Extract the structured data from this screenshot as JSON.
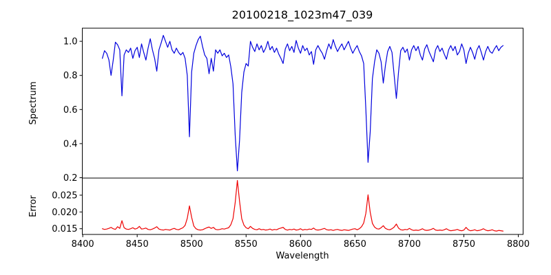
{
  "figure": {
    "background": "#ffffff",
    "kind": "matplotlib-style two-panel spectrum plot"
  },
  "chart_data": {
    "type": "line",
    "title": "20100218_1023m47_039",
    "xlabel": "Wavelength",
    "xlim": [
      8399.6,
      8804.4
    ],
    "x": {
      "start": 8418,
      "step": 2,
      "end": 8786
    },
    "xticks": [
      {
        "value": 8400,
        "label": "8400"
      },
      {
        "value": 8450,
        "label": "8450"
      },
      {
        "value": 8500,
        "label": "8500"
      },
      {
        "value": 8550,
        "label": "8550"
      },
      {
        "value": 8600,
        "label": "8600"
      },
      {
        "value": 8650,
        "label": "8650"
      },
      {
        "value": 8700,
        "label": "8700"
      },
      {
        "value": 8750,
        "label": "8750"
      },
      {
        "value": 8800,
        "label": "8800"
      }
    ],
    "grid": false,
    "legend": "none",
    "subplots": [
      {
        "series": "spectrum",
        "ylabel": "Spectrum",
        "color": "#0000dd",
        "ylim": [
          0.198,
          1.077
        ],
        "yticks": [
          {
            "value": 0.2,
            "label": "0.2"
          },
          {
            "value": 0.4,
            "label": "0.4"
          },
          {
            "value": 0.6,
            "label": "0.6"
          },
          {
            "value": 0.8,
            "label": "0.8"
          },
          {
            "value": 1.0,
            "label": "1.0"
          }
        ],
        "notable_features": "absorption lines near 8498, 8542, 8662 (Ca II triplet) with depths 0.44, 0.24, 0.29; smaller dips near 8436, 8468, 8516, 8520, 8676, 8688",
        "values": [
          0.9,
          0.945,
          0.93,
          0.892,
          0.8,
          0.89,
          0.995,
          0.98,
          0.95,
          0.68,
          0.92,
          0.95,
          0.935,
          0.96,
          0.9,
          0.945,
          0.965,
          0.905,
          0.985,
          0.935,
          0.89,
          0.96,
          1.015,
          0.95,
          0.9,
          0.825,
          0.95,
          0.99,
          1.035,
          1.0,
          0.965,
          1.0,
          0.95,
          0.93,
          0.96,
          0.935,
          0.92,
          0.935,
          0.9,
          0.8,
          0.44,
          0.82,
          0.93,
          0.975,
          1.01,
          1.03,
          0.97,
          0.92,
          0.9,
          0.81,
          0.9,
          0.825,
          0.95,
          0.93,
          0.95,
          0.915,
          0.93,
          0.905,
          0.92,
          0.85,
          0.75,
          0.45,
          0.24,
          0.42,
          0.7,
          0.82,
          0.87,
          0.855,
          1.0,
          0.965,
          0.94,
          0.985,
          0.95,
          0.975,
          0.935,
          0.96,
          1.0,
          0.95,
          0.97,
          0.935,
          0.96,
          0.925,
          0.9,
          0.87,
          0.955,
          0.985,
          0.945,
          0.97,
          0.935,
          1.005,
          0.96,
          0.93,
          0.975,
          0.945,
          0.96,
          0.92,
          0.94,
          0.865,
          0.95,
          0.975,
          0.95,
          0.93,
          0.895,
          0.945,
          0.985,
          0.955,
          1.01,
          0.97,
          0.94,
          0.965,
          0.985,
          0.95,
          0.975,
          1.0,
          0.96,
          0.93,
          0.955,
          0.975,
          0.94,
          0.915,
          0.87,
          0.6,
          0.29,
          0.47,
          0.78,
          0.88,
          0.95,
          0.93,
          0.88,
          0.755,
          0.86,
          0.94,
          0.97,
          0.935,
          0.8,
          0.665,
          0.82,
          0.945,
          0.965,
          0.935,
          0.955,
          0.89,
          0.95,
          0.975,
          0.945,
          0.97,
          0.92,
          0.89,
          0.955,
          0.98,
          0.94,
          0.91,
          0.88,
          0.95,
          0.975,
          0.94,
          0.96,
          0.925,
          0.895,
          0.95,
          0.975,
          0.945,
          0.97,
          0.92,
          0.94,
          0.985,
          0.95,
          0.87,
          0.93,
          0.965,
          0.935,
          0.895,
          0.95,
          0.975,
          0.935,
          0.89,
          0.94,
          0.97,
          0.94,
          0.93,
          0.955,
          0.975,
          0.945,
          0.965,
          0.975
        ]
      },
      {
        "series": "error",
        "ylabel": "Error",
        "color": "#ee0000",
        "ylim": [
          0.0133,
          0.0301
        ],
        "yticks": [
          {
            "value": 0.015,
            "label": "0.015"
          },
          {
            "value": 0.02,
            "label": "0.020"
          },
          {
            "value": 0.025,
            "label": "0.025"
          }
        ],
        "notable_features": "baseline near 0.0147 with peaks at 8498 (0.022), 8542 (0.029), 8662 (0.025)",
        "values": [
          0.015,
          0.0148,
          0.0149,
          0.0151,
          0.0154,
          0.015,
          0.0148,
          0.0156,
          0.0151,
          0.0174,
          0.0153,
          0.0149,
          0.0148,
          0.015,
          0.0153,
          0.0149,
          0.0151,
          0.0157,
          0.0149,
          0.015,
          0.0152,
          0.0148,
          0.0147,
          0.0149,
          0.0152,
          0.0156,
          0.0149,
          0.0147,
          0.0146,
          0.0148,
          0.0147,
          0.0146,
          0.0149,
          0.0151,
          0.0148,
          0.0147,
          0.015,
          0.0153,
          0.016,
          0.0181,
          0.0218,
          0.0184,
          0.0158,
          0.015,
          0.0147,
          0.0146,
          0.0147,
          0.015,
          0.0153,
          0.0155,
          0.0151,
          0.0154,
          0.0148,
          0.0147,
          0.0148,
          0.015,
          0.0149,
          0.0151,
          0.0153,
          0.0162,
          0.018,
          0.0228,
          0.0294,
          0.0232,
          0.018,
          0.0161,
          0.0153,
          0.015,
          0.0157,
          0.0151,
          0.0148,
          0.0147,
          0.015,
          0.0147,
          0.0148,
          0.0146,
          0.0147,
          0.0149,
          0.0146,
          0.0148,
          0.0147,
          0.015,
          0.0152,
          0.0154,
          0.0148,
          0.0146,
          0.0148,
          0.0147,
          0.0149,
          0.0146,
          0.0147,
          0.015,
          0.0146,
          0.0148,
          0.0147,
          0.0149,
          0.0148,
          0.0152,
          0.0147,
          0.0146,
          0.0147,
          0.0149,
          0.0151,
          0.0147,
          0.0146,
          0.0147,
          0.0145,
          0.0147,
          0.0148,
          0.0146,
          0.0145,
          0.0147,
          0.0146,
          0.0145,
          0.0147,
          0.0149,
          0.015,
          0.0147,
          0.015,
          0.0156,
          0.0167,
          0.0196,
          0.0251,
          0.0199,
          0.0166,
          0.0155,
          0.015,
          0.0149,
          0.0153,
          0.0159,
          0.0151,
          0.0148,
          0.0147,
          0.015,
          0.0155,
          0.0164,
          0.0152,
          0.0147,
          0.0146,
          0.0148,
          0.0147,
          0.0151,
          0.0147,
          0.0145,
          0.0146,
          0.0145,
          0.0147,
          0.015,
          0.0146,
          0.0145,
          0.0146,
          0.0148,
          0.0151,
          0.0146,
          0.0145,
          0.0146,
          0.0145,
          0.0147,
          0.015,
          0.0146,
          0.0144,
          0.0145,
          0.0146,
          0.0148,
          0.0145,
          0.0144,
          0.0146,
          0.0154,
          0.0147,
          0.0144,
          0.0145,
          0.0147,
          0.0144,
          0.0145,
          0.0147,
          0.015,
          0.0146,
          0.0144,
          0.0145,
          0.0147,
          0.0144,
          0.0143,
          0.0145,
          0.0144,
          0.0143
        ]
      }
    ]
  }
}
